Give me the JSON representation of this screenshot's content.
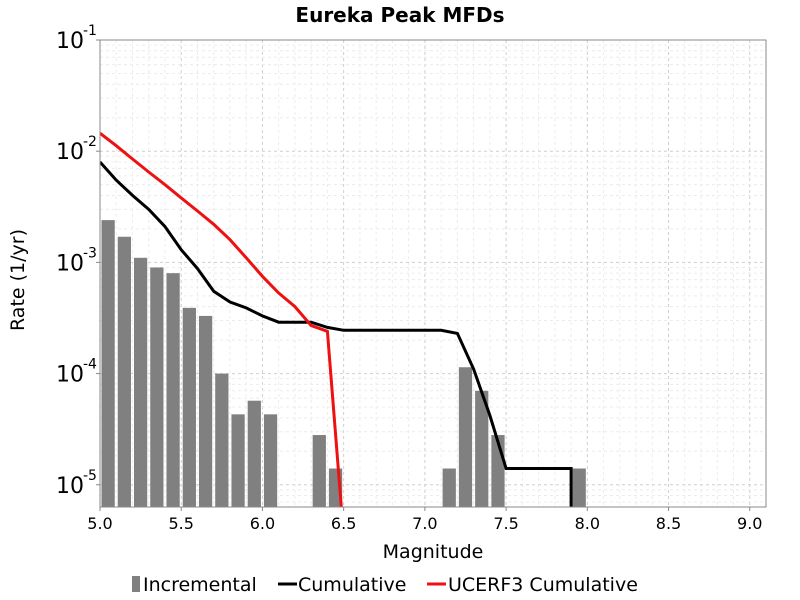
{
  "chart_data": {
    "type": "bar+line",
    "title": "Eureka Peak MFDs",
    "xlabel": "Magnitude",
    "ylabel": "Rate (1/yr)",
    "xlim": [
      5.0,
      9.1
    ],
    "ylim_log10": [
      -5.2,
      -1.0
    ],
    "yscale": "log",
    "grid": true,
    "legend_position": "bottom",
    "x_ticks": [
      "5.0",
      "5.5",
      "6.0",
      "6.5",
      "7.0",
      "7.5",
      "8.0",
      "8.5",
      "9.0"
    ],
    "y_ticks": [
      {
        "base": "10",
        "exp": "-1",
        "value": 0.1
      },
      {
        "base": "10",
        "exp": "-2",
        "value": 0.01
      },
      {
        "base": "10",
        "exp": "-3",
        "value": 0.001
      },
      {
        "base": "10",
        "exp": "-4",
        "value": 0.0001
      },
      {
        "base": "10",
        "exp": "-5",
        "value": 1e-05
      }
    ],
    "series": [
      {
        "name": "Incremental",
        "kind": "bar",
        "color": "#808080",
        "bar_width": 0.1,
        "x": [
          5.05,
          5.15,
          5.25,
          5.35,
          5.45,
          5.55,
          5.65,
          5.75,
          5.85,
          5.95,
          6.05,
          6.35,
          6.45,
          7.15,
          7.25,
          7.35,
          7.45,
          7.95
        ],
        "y": [
          0.0024,
          0.0017,
          0.0011,
          0.0009,
          0.0008,
          0.00039,
          0.00033,
          0.0001,
          4.3e-05,
          5.7e-05,
          4.3e-05,
          2.8e-05,
          1.4e-05,
          1.4e-05,
          0.000114,
          7e-05,
          2.8e-05,
          1.4e-05
        ]
      },
      {
        "name": "Cumulative",
        "kind": "line",
        "color": "#000000",
        "x": [
          5.0,
          5.1,
          5.2,
          5.3,
          5.4,
          5.5,
          5.6,
          5.7,
          5.8,
          5.9,
          6.0,
          6.1,
          6.2,
          6.3,
          6.4,
          6.5,
          6.6,
          6.7,
          6.8,
          6.9,
          7.0,
          7.1,
          7.2,
          7.3,
          7.4,
          7.5,
          7.6,
          7.7,
          7.8,
          7.9,
          7.9
        ],
        "y": [
          0.008,
          0.0055,
          0.004,
          0.003,
          0.0021,
          0.0013,
          0.00088,
          0.00055,
          0.00044,
          0.00039,
          0.00033,
          0.00029,
          0.00029,
          0.00029,
          0.00026,
          0.000245,
          0.000245,
          0.000245,
          0.000245,
          0.000245,
          0.000245,
          0.000245,
          0.00023,
          0.00011,
          4.2e-05,
          1.4e-05,
          1.4e-05,
          1.4e-05,
          1.4e-05,
          1.4e-05,
          1e-06
        ]
      },
      {
        "name": "UCERF3 Cumulative",
        "kind": "line",
        "color": "#ee1111",
        "x": [
          5.0,
          5.1,
          5.2,
          5.3,
          5.4,
          5.5,
          5.6,
          5.7,
          5.8,
          5.9,
          6.0,
          6.1,
          6.2,
          6.3,
          6.4,
          6.5
        ],
        "y": [
          0.0145,
          0.0112,
          0.0085,
          0.0065,
          0.005,
          0.0038,
          0.0029,
          0.0022,
          0.0016,
          0.0011,
          0.00075,
          0.00053,
          0.0004,
          0.00027,
          0.00024,
          1e-06
        ]
      }
    ]
  }
}
